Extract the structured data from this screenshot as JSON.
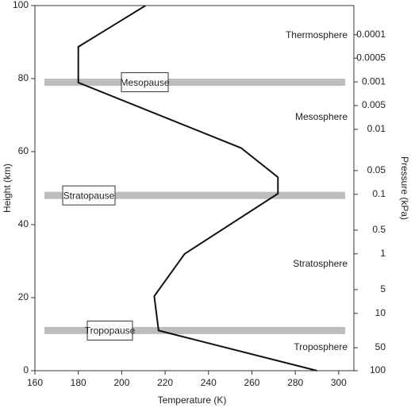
{
  "chart_data": {
    "type": "line",
    "xlabel": "Temperature (K)",
    "ylabel": "Height (km)",
    "x": [
      290,
      217,
      215,
      229,
      272,
      272,
      255,
      180,
      180,
      211
    ],
    "series": [
      {
        "color": "#111111",
        "values": [
          0,
          11,
          20.4,
          32,
          48.5,
          53,
          61,
          78.9,
          88.7,
          100
        ]
      }
    ],
    "xlim": [
      160,
      307
    ],
    "ylim": [
      0,
      100
    ],
    "xticks": [
      160,
      180,
      200,
      220,
      240,
      260,
      280,
      300
    ],
    "yticks": [
      0,
      20,
      40,
      60,
      80,
      100
    ],
    "y2label": "Pressure (kPa)",
    "y2ticks": [
      0.0001,
      0.0005,
      0.001,
      0.005,
      0.01,
      0.05,
      0.1,
      0.5,
      1,
      5,
      10,
      50,
      100
    ],
    "y2tick_heights": [
      92,
      85.6,
      79.1,
      72.6,
      66.1,
      54.8,
      48.3,
      38.5,
      32,
      22.2,
      15.7,
      6.3,
      0
    ],
    "pauses": [
      {
        "name": "Mesopause",
        "height": 79
      },
      {
        "name": "Stratopause",
        "height": 48
      },
      {
        "name": "Tropopause",
        "height": 11
      }
    ],
    "band_color": "#bdbdbd",
    "regions": [
      "Thermosphere",
      "Mesosphere",
      "Stratosphere",
      "Troposphere"
    ]
  }
}
